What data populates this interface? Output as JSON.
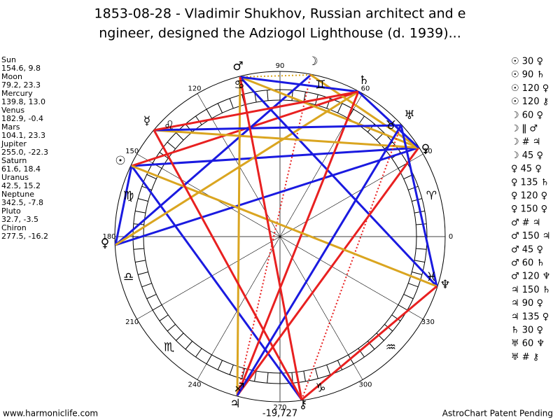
{
  "title": [
    "1853-08-28 - Vladimir Shukhov, Russian architect and e",
    "ngineer, designed the Adziogol Lighthouse (d. 1939)..."
  ],
  "planets": [
    {
      "name": "Sun",
      "position": "154.6, 9.8"
    },
    {
      "name": "Moon",
      "position": "79.2, 23.3"
    },
    {
      "name": "Mercury",
      "position": "139.8, 13.0"
    },
    {
      "name": "Venus",
      "position": "182.9, -0.4"
    },
    {
      "name": "Mars",
      "position": "104.1, 23.3"
    },
    {
      "name": "Jupiter",
      "position": "255.0, -22.3"
    },
    {
      "name": "Saturn",
      "position": "61.6, 18.4"
    },
    {
      "name": "Uranus",
      "position": "42.5, 15.2"
    },
    {
      "name": "Neptune",
      "position": "342.5, -7.8"
    },
    {
      "name": "Pluto",
      "position": "32.7, -3.5"
    },
    {
      "name": "Chiron",
      "position": "277.5, -16.2"
    }
  ],
  "aspects": [
    "☉ 30 ♀",
    "☉ 90 ♄",
    "☉ 120 ♀",
    "☉ 120 ⚷",
    "☽ 60 ♀",
    "☽ ǁ ♂",
    "☽ # ♃",
    "☽ 45 ♀",
    "♀ 45 ♀",
    "♀ 135 ♄",
    "♀ 120 ♀",
    "♀ 150 ♀",
    "♂ # ♃",
    "♂ 150 ♃",
    "♂ 45 ♀",
    "♂ 60 ♄",
    "♂ 120 ♆",
    "♃ 150 ♄",
    "♃ 90 ♀",
    "♃ 135 ♀",
    "♄ 30 ♀",
    "♅ 60 ♆",
    "♅ # ⚷"
  ],
  "degrees": [
    0,
    30,
    60,
    90,
    120,
    150,
    180,
    210,
    240,
    270,
    300,
    330
  ],
  "signs": [
    "♈",
    "♉",
    "♊",
    "♋",
    "♌",
    "♍",
    "♎",
    "♏",
    "♐",
    "♑",
    "♒",
    "♓"
  ],
  "wheel_glyphs": [
    "♂",
    "☽",
    "♄",
    "♅",
    "♀",
    "♆",
    "⚷",
    "♃",
    "☉",
    "♀",
    "☿"
  ],
  "count": "-19,727",
  "footer": {
    "left": "www.harmoniclife.com",
    "right": "AstroChart Patent Pending"
  }
}
